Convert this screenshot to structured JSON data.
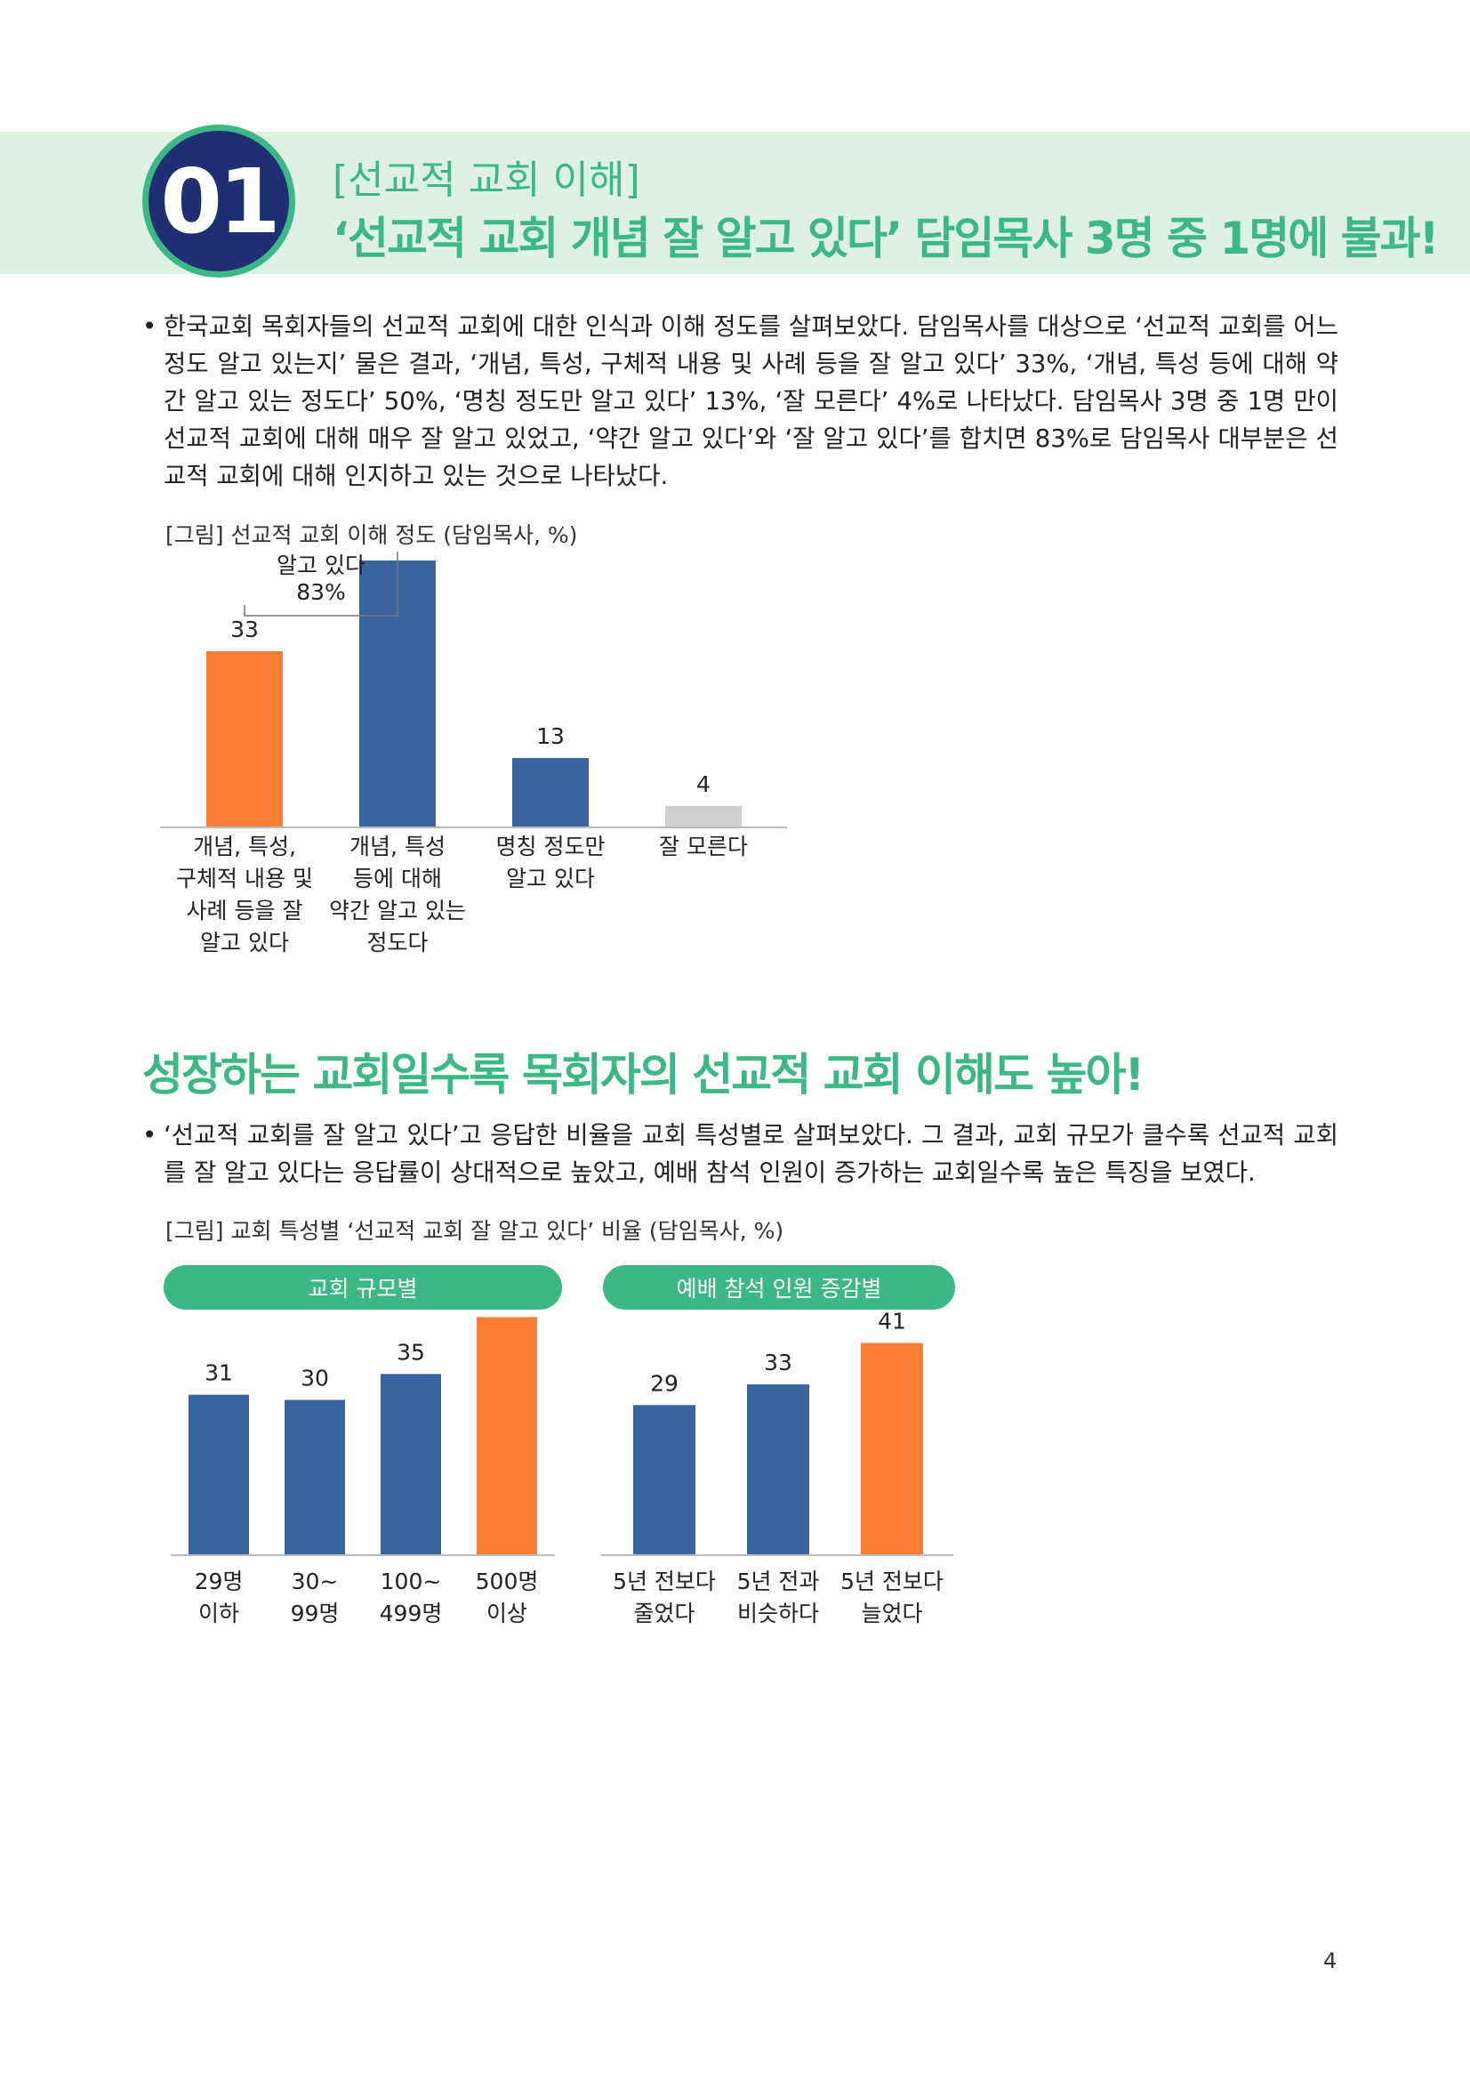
{
  "section": {
    "number": "01",
    "subtitle": "[선교적 교회 이해]",
    "title": "‘선교적 교회 개념 잘 알고 있다’ 담임목사 3명 중 1명에 불과!"
  },
  "paragraph1": "한국교회 목회자들의 선교적 교회에 대한 인식과 이해 정도를 살펴보았다. 담임목사를 대상으로 ‘선교적 교회를 어느 정도 알고 있는지’ 물은 결과, ‘개념, 특성, 구체적 내용 및 사례 등을 잘 알고 있다’ 33%, ‘개념, 특성 등에 대해 약간 알고 있는 정도다’ 50%, ‘명칭 정도만 알고 있다’ 13%, ‘잘 모른다’ 4%로 나타났다. 담임목사 3명 중 1명 만이 선교적 교회에 대해 매우 잘 알고 있었고, ‘약간 알고 있다’와 ‘잘 알고 있다’를 합치면 83%로 담임목사 대부분은 선교적 교회에 대해 인지하고 있는 것으로 나타났다.",
  "figure1_caption": "[그림] 선교적 교회 이해 정도 (담임목사, %)",
  "heading2": "성장하는 교회일수록 목회자의 선교적 교회 이해도 높아!",
  "paragraph2": "‘선교적 교회를 잘 알고 있다’고 응답한 비율을 교회 특성별로 살펴보았다. 그 결과, 교회 규모가 클수록 선교적 교회를 잘 알고 있다는 응답률이 상대적으로 높았고, 예배 참석 인원이 증가하는 교회일수록 높은 특징을 보였다.",
  "figure2_caption": "[그림] 교회 특성별 ‘선교적 교회 잘 알고 있다’ 비율 (담임목사, %)",
  "page_number": "4",
  "colors": {
    "accent": "#3cb887",
    "navy": "#1e2f74",
    "blue": "#3a64a0",
    "orange": "#fd7f36",
    "gray": "#cfcfcf"
  },
  "chart_data": [
    {
      "type": "bar",
      "categories": [
        [
          "개념, 특성,",
          "구체적 내용 및",
          "사례 등을 잘",
          "알고 있다"
        ],
        [
          "개념, 특성",
          "등에 대해",
          "약간 알고 있는",
          "정도다"
        ],
        [
          "명칭 정도만",
          "알고 있다"
        ],
        [
          "잘 모른다"
        ]
      ],
      "values": [
        33,
        50,
        13,
        4
      ],
      "colors": [
        "#fd7f36",
        "#3a64a0",
        "#3a64a0",
        "#cfcfcf"
      ],
      "ylim": [
        0,
        60
      ],
      "annotation": [
        "알고 있다",
        "83%"
      ]
    },
    {
      "type": "bar",
      "title": "교회 규모별",
      "categories": [
        [
          "29명",
          "이하"
        ],
        [
          "30~",
          "99명"
        ],
        [
          "100~",
          "499명"
        ],
        [
          "500명",
          "이상"
        ]
      ],
      "values": [
        31,
        30,
        35,
        46
      ],
      "colors": [
        "#3a64a0",
        "#3a64a0",
        "#3a64a0",
        "#fd7f36"
      ],
      "ylim": [
        0,
        55
      ]
    },
    {
      "type": "bar",
      "title": "예배 참석 인원 증감별",
      "categories": [
        [
          "5년 전보다",
          "줄었다"
        ],
        [
          "5년 전과",
          "비슷하다"
        ],
        [
          "5년 전보다",
          "늘었다"
        ]
      ],
      "values": [
        29,
        33,
        41
      ],
      "colors": [
        "#3a64a0",
        "#3a64a0",
        "#fd7f36"
      ],
      "ylim": [
        0,
        55
      ]
    }
  ]
}
